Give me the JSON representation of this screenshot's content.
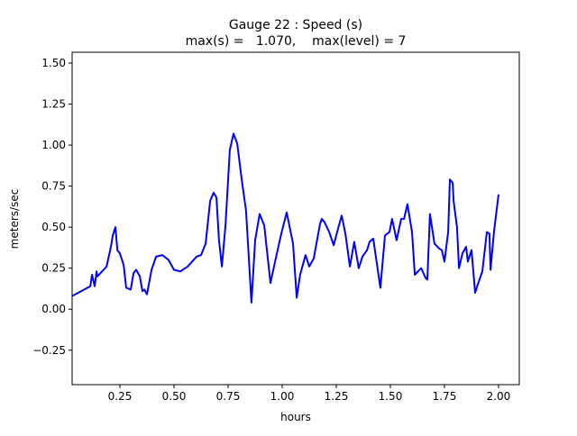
{
  "chart_data": {
    "type": "line",
    "title": "Gauge 22 : Speed (s)",
    "subtitle": "max(s) =   1.070,    max(level) = 7",
    "xlabel": "hours",
    "ylabel": "meters/sec",
    "xlim": [
      0.029,
      2.096
    ],
    "ylim": [
      -0.46,
      1.566
    ],
    "xticks": [
      0.25,
      0.5,
      0.75,
      1.0,
      1.25,
      1.5,
      1.75,
      2.0
    ],
    "xtick_labels": [
      "0.25",
      "0.50",
      "0.75",
      "1.00",
      "1.25",
      "1.50",
      "1.75",
      "2.00"
    ],
    "yticks": [
      -0.25,
      0,
      0.25,
      0.5,
      0.75,
      1.0,
      1.25,
      1.5
    ],
    "ytick_labels": [
      "−0.25",
      "0.00",
      "0.25",
      "0.50",
      "0.75",
      "1.00",
      "1.25",
      "1.50"
    ],
    "grid": false,
    "series": [
      {
        "color": "#0000ff",
        "x": [
          0.029,
          0.113,
          0.121,
          0.133,
          0.142,
          0.146,
          0.188,
          0.208,
          0.217,
          0.229,
          0.238,
          0.25,
          0.267,
          0.279,
          0.3,
          0.313,
          0.325,
          0.342,
          0.354,
          0.363,
          0.375,
          0.396,
          0.417,
          0.446,
          0.475,
          0.5,
          0.529,
          0.563,
          0.604,
          0.625,
          0.646,
          0.667,
          0.683,
          0.696,
          0.708,
          0.721,
          0.738,
          0.758,
          0.775,
          0.792,
          0.813,
          0.833,
          0.858,
          0.875,
          0.896,
          0.917,
          0.946,
          0.967,
          0.996,
          1.021,
          1.05,
          1.067,
          1.083,
          1.108,
          1.125,
          1.146,
          1.175,
          1.183,
          1.196,
          1.217,
          1.238,
          1.258,
          1.275,
          1.292,
          1.313,
          1.333,
          1.354,
          1.371,
          1.392,
          1.404,
          1.421,
          1.454,
          1.475,
          1.496,
          1.508,
          1.529,
          1.55,
          1.563,
          1.579,
          1.6,
          1.613,
          1.642,
          1.663,
          1.671,
          1.683,
          1.704,
          1.725,
          1.738,
          1.75,
          1.767,
          1.775,
          1.788,
          1.792,
          1.808,
          1.817,
          1.833,
          1.85,
          1.858,
          1.875,
          1.892,
          1.904,
          1.925,
          1.946,
          1.958,
          1.963,
          1.979,
          2.0
        ],
        "y": [
          0.08,
          0.14,
          0.21,
          0.14,
          0.23,
          0.2,
          0.26,
          0.38,
          0.45,
          0.5,
          0.36,
          0.34,
          0.27,
          0.13,
          0.12,
          0.22,
          0.24,
          0.2,
          0.11,
          0.12,
          0.09,
          0.24,
          0.32,
          0.33,
          0.3,
          0.24,
          0.23,
          0.26,
          0.32,
          0.33,
          0.4,
          0.66,
          0.71,
          0.68,
          0.42,
          0.26,
          0.51,
          0.97,
          1.07,
          1.01,
          0.79,
          0.6,
          0.04,
          0.42,
          0.58,
          0.51,
          0.16,
          0.29,
          0.46,
          0.59,
          0.4,
          0.07,
          0.21,
          0.33,
          0.26,
          0.31,
          0.52,
          0.55,
          0.53,
          0.47,
          0.39,
          0.49,
          0.57,
          0.46,
          0.26,
          0.41,
          0.25,
          0.32,
          0.36,
          0.41,
          0.43,
          0.13,
          0.45,
          0.47,
          0.55,
          0.42,
          0.55,
          0.55,
          0.64,
          0.47,
          0.21,
          0.25,
          0.19,
          0.18,
          0.58,
          0.4,
          0.37,
          0.36,
          0.29,
          0.47,
          0.79,
          0.77,
          0.66,
          0.5,
          0.25,
          0.34,
          0.38,
          0.29,
          0.36,
          0.1,
          0.15,
          0.23,
          0.47,
          0.46,
          0.24,
          0.47,
          0.7
        ]
      }
    ]
  }
}
